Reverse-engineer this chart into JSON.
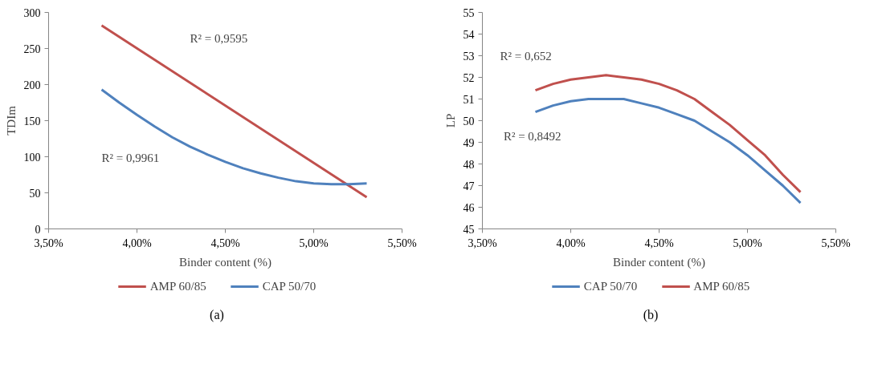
{
  "chart_data": [
    {
      "type": "line",
      "xlabel": "Binder content (%)",
      "ylabel": "TDIm",
      "xlim": [
        3.5,
        5.5
      ],
      "xticks": [
        {
          "value": 3.5,
          "label": "3,50%"
        },
        {
          "value": 4.0,
          "label": "4,00%"
        },
        {
          "value": 4.5,
          "label": "4,50%"
        },
        {
          "value": 5.0,
          "label": "5,00%"
        },
        {
          "value": 5.5,
          "label": "5,50%"
        }
      ],
      "ylim": [
        0,
        300
      ],
      "yticks": [
        0,
        50,
        100,
        150,
        200,
        250,
        300
      ],
      "grid": false,
      "legend": "bottom",
      "marker": "none",
      "line_style": "solid",
      "series": [
        {
          "name": "AMP 60/85",
          "color": "#c0504d",
          "x": [
            3.8,
            5.3
          ],
          "values": [
            282,
            44
          ]
        },
        {
          "name": "CAP 50/70",
          "color": "#4f81bd",
          "x": [
            3.8,
            3.9,
            4.0,
            4.1,
            4.2,
            4.3,
            4.4,
            4.5,
            4.6,
            4.7,
            4.8,
            4.9,
            5.0,
            5.1,
            5.2,
            5.3
          ],
          "values": [
            193,
            175,
            158,
            142,
            127,
            114,
            103,
            93,
            84,
            77,
            71,
            66,
            63,
            62,
            62,
            63
          ]
        }
      ],
      "annotations": [
        "R² = 0,9595",
        "R² = 0,9961",
        "(a)"
      ]
    },
    {
      "type": "line",
      "xlabel": "Binder content (%)",
      "ylabel": "LP",
      "xlim": [
        3.5,
        5.5
      ],
      "xticks": [
        {
          "value": 3.5,
          "label": "3,50%"
        },
        {
          "value": 4.0,
          "label": "4,00%"
        },
        {
          "value": 4.5,
          "label": "4,50%"
        },
        {
          "value": 5.0,
          "label": "5,00%"
        },
        {
          "value": 5.5,
          "label": "5,50%"
        }
      ],
      "ylim": [
        45,
        55
      ],
      "yticks": [
        45,
        46,
        47,
        48,
        49,
        50,
        51,
        52,
        53,
        54,
        55
      ],
      "grid": false,
      "legend": "bottom",
      "marker": "none",
      "line_style": "solid",
      "series": [
        {
          "name": "CAP 50/70",
          "color": "#4f81bd",
          "x": [
            3.8,
            3.9,
            4.0,
            4.1,
            4.2,
            4.3,
            4.4,
            4.5,
            4.6,
            4.7,
            4.8,
            4.9,
            5.0,
            5.1,
            5.2,
            5.3
          ],
          "values": [
            50.4,
            50.7,
            50.9,
            51.0,
            51.0,
            51.0,
            50.8,
            50.6,
            50.3,
            50.0,
            49.5,
            49.0,
            48.4,
            47.7,
            47.0,
            46.2
          ]
        },
        {
          "name": "AMP 60/85",
          "color": "#c0504d",
          "x": [
            3.8,
            3.9,
            4.0,
            4.1,
            4.2,
            4.3,
            4.4,
            4.5,
            4.6,
            4.7,
            4.8,
            4.9,
            5.0,
            5.1,
            5.2,
            5.3
          ],
          "values": [
            51.4,
            51.7,
            51.9,
            52.0,
            52.1,
            52.0,
            51.9,
            51.7,
            51.4,
            51.0,
            50.4,
            49.8,
            49.1,
            48.4,
            47.5,
            46.7
          ]
        }
      ],
      "annotations": [
        "R² = 0,652",
        "R² = 0,8492",
        "(b)"
      ]
    }
  ]
}
